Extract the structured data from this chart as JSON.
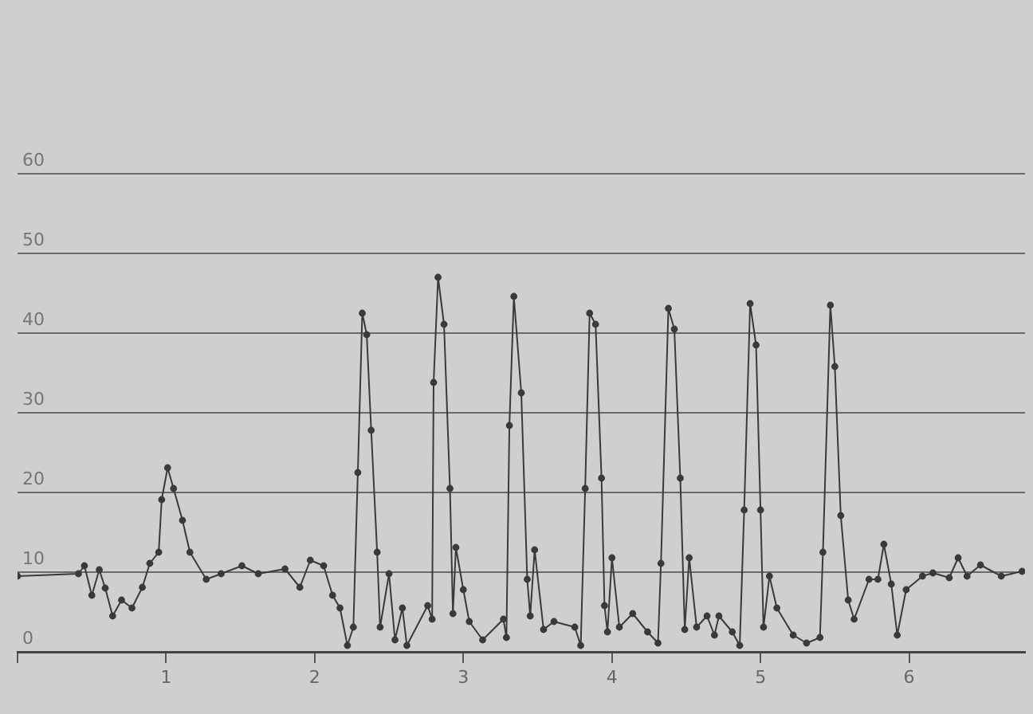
{
  "chart_data": {
    "type": "line",
    "marker": "circle",
    "grid": "y",
    "xlim": [
      0,
      6.78
    ],
    "ylim": [
      0,
      60
    ],
    "xticks": [
      {
        "value": 0,
        "label": null
      },
      1,
      2,
      3,
      4,
      5,
      6
    ],
    "yticks": [
      0,
      10,
      20,
      30,
      40,
      50,
      60
    ],
    "series": [
      {
        "color": "#3a3a3a",
        "x": [
          0,
          0.41,
          0.45,
          0.5,
          0.55,
          0.59,
          0.64,
          0.7,
          0.77,
          0.84,
          0.89,
          0.95,
          0.97,
          1.01,
          1.05,
          1.11,
          1.16,
          1.27,
          1.37,
          1.51,
          1.62,
          1.8,
          1.9,
          1.97,
          2.06,
          2.12,
          2.17,
          2.22,
          2.26,
          2.29,
          2.32,
          2.35,
          2.38,
          2.42,
          2.44,
          2.5,
          2.54,
          2.59,
          2.62,
          2.76,
          2.79,
          2.8,
          2.83,
          2.87,
          2.91,
          2.93,
          2.95,
          3,
          3.04,
          3.13,
          3.27,
          3.29,
          3.31,
          3.34,
          3.39,
          3.43,
          3.45,
          3.48,
          3.54,
          3.61,
          3.75,
          3.79,
          3.82,
          3.85,
          3.89,
          3.93,
          3.95,
          3.97,
          4,
          4.05,
          4.14,
          4.24,
          4.31,
          4.33,
          4.38,
          4.42,
          4.46,
          4.49,
          4.52,
          4.57,
          4.64,
          4.69,
          4.72,
          4.81,
          4.86,
          4.89,
          4.93,
          4.97,
          5,
          5.02,
          5.06,
          5.11,
          5.22,
          5.31,
          5.4,
          5.42,
          5.47,
          5.5,
          5.54,
          5.59,
          5.63,
          5.73,
          5.79,
          5.83,
          5.88,
          5.92,
          5.98,
          6.09,
          6.16,
          6.27,
          6.33,
          6.39,
          6.48,
          6.62,
          6.76
        ],
        "values": [
          9.5,
          9.8,
          10.8,
          7.1,
          10.3,
          8,
          4.5,
          6.5,
          5.5,
          8.1,
          11.1,
          12.5,
          19.1,
          23.1,
          20.5,
          16.5,
          12.5,
          9.1,
          9.8,
          10.8,
          9.8,
          10.4,
          8.1,
          11.5,
          10.8,
          7.1,
          5.5,
          0.8,
          3.1,
          22.5,
          42.5,
          39.8,
          27.8,
          12.5,
          3.1,
          9.8,
          1.5,
          5.5,
          0.8,
          5.8,
          4.1,
          33.8,
          47,
          41.1,
          20.5,
          4.8,
          13.1,
          7.8,
          3.8,
          1.5,
          4.1,
          1.8,
          28.4,
          44.6,
          32.5,
          9.1,
          4.5,
          12.8,
          2.8,
          3.8,
          3.1,
          0.8,
          20.5,
          42.5,
          41.1,
          21.8,
          5.8,
          2.5,
          11.8,
          3.1,
          4.8,
          2.5,
          1.1,
          11.1,
          43.1,
          40.5,
          21.8,
          2.8,
          11.8,
          3.1,
          4.5,
          2.1,
          4.5,
          2.5,
          0.8,
          17.8,
          43.7,
          38.5,
          17.8,
          3.1,
          9.5,
          5.5,
          2.1,
          1.1,
          1.8,
          12.5,
          43.5,
          35.8,
          17.1,
          6.5,
          4.1,
          9.1,
          9.1,
          13.5,
          8.5,
          2.1,
          7.8,
          9.5,
          9.9,
          9.3,
          11.8,
          9.5,
          10.9,
          9.5,
          10.1
        ]
      }
    ]
  }
}
